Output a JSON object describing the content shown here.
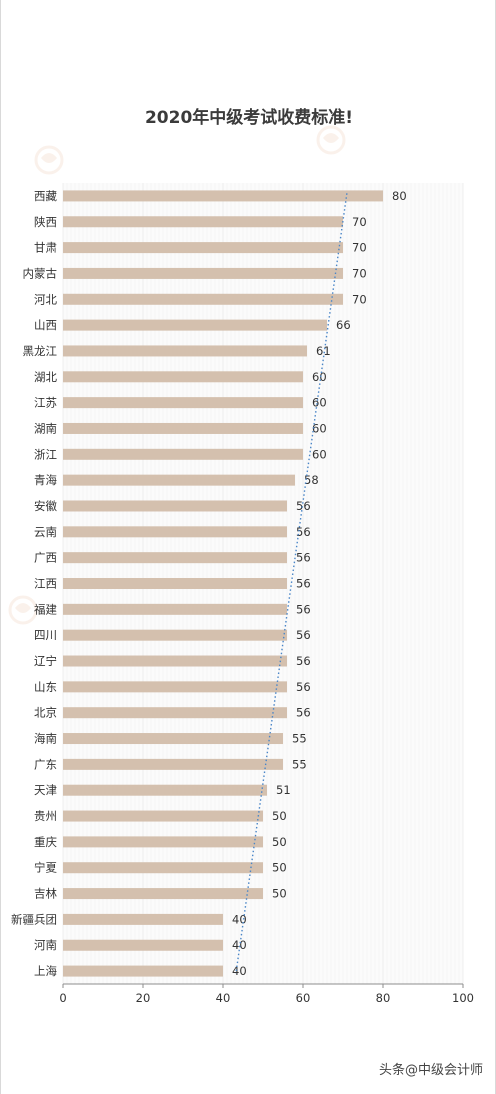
{
  "chart_data": {
    "type": "bar",
    "orientation": "horizontal",
    "title": "2020年中级考试收费标准!",
    "categories": [
      "西藏",
      "陕西",
      "甘肃",
      "内蒙古",
      "河北",
      "山西",
      "黑龙江",
      "湖北",
      "江苏",
      "湖南",
      "浙江",
      "青海",
      "安徽",
      "云南",
      "广西",
      "江西",
      "福建",
      "四川",
      "辽宁",
      "山东",
      "北京",
      "海南",
      "广东",
      "天津",
      "贵州",
      "重庆",
      "宁夏",
      "吉林",
      "新疆兵团",
      "河南",
      "上海"
    ],
    "values": [
      80,
      70,
      70,
      70,
      70,
      66,
      61,
      60,
      60,
      60,
      60,
      58,
      56,
      56,
      56,
      56,
      56,
      56,
      56,
      56,
      56,
      55,
      55,
      51,
      50,
      50,
      50,
      50,
      40,
      40,
      40
    ],
    "xlim": [
      0,
      100
    ],
    "xticks": [
      0,
      20,
      40,
      60,
      80,
      100
    ],
    "trendline": "linear",
    "grid": "vertical",
    "bar_color": "#d4c0ae",
    "trend_color": "#4a86c8"
  },
  "attribution": {
    "prefix": "头条",
    "handle": "@中级会计师"
  },
  "colors": {
    "title": "#3b3b3b",
    "label": "#333333",
    "axis": "#8c8c8c",
    "watermark": "#f2d9c8"
  }
}
